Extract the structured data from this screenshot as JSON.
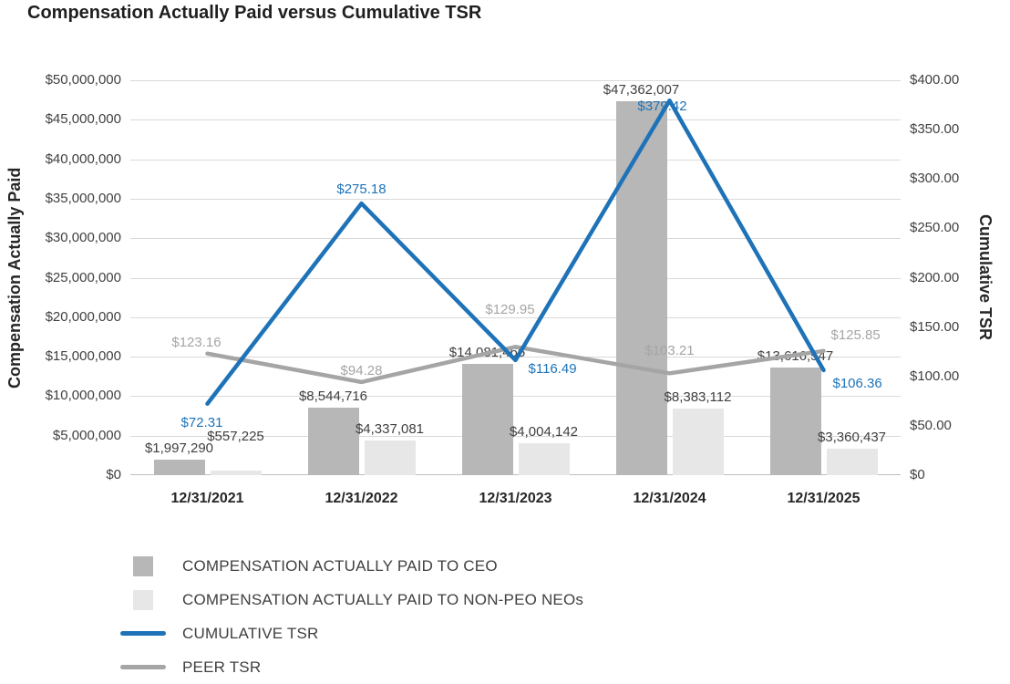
{
  "title": "Compensation Actually Paid versus Cumulative TSR",
  "chart_data": {
    "type": "combo-bar-line",
    "categories": [
      "12/31/2021",
      "12/31/2022",
      "12/31/2023",
      "12/31/2024",
      "12/31/2025"
    ],
    "left_axis": {
      "title": "Compensation Actually Paid",
      "min": 0,
      "max": 50000000,
      "step": 5000000,
      "tick_labels": [
        "$0",
        "$5,000,000",
        "$10,000,000",
        "$15,000,000",
        "$20,000,000",
        "$25,000,000",
        "$30,000,000",
        "$35,000,000",
        "$40,000,000",
        "$45,000,000",
        "$50,000,000"
      ]
    },
    "right_axis": {
      "title": "Cumulative TSR",
      "min": 0,
      "max": 400,
      "step": 50,
      "tick_labels": [
        "$0",
        "$50.00",
        "$100.00",
        "$150.00",
        "$200.00",
        "$250.00",
        "$300.00",
        "$350.00",
        "$400.00"
      ]
    },
    "bar_series": [
      {
        "name": "COMPENSATION ACTUALLY PAID TO CEO",
        "slug": "ceo",
        "color": "#b7b7b7",
        "values": [
          1997290,
          8544716,
          14081465,
          47362007,
          13616547
        ],
        "labels": [
          "$1,997,290",
          "$8,544,716",
          "$14,081,465",
          "$47,362,007",
          "$13,616,547"
        ]
      },
      {
        "name": "COMPENSATION ACTUALLY PAID TO NON-PEO NEOs",
        "slug": "non-peo-neos",
        "color": "#e7e7e7",
        "values": [
          557225,
          4337081,
          4004142,
          8383112,
          3360437
        ],
        "labels": [
          "$557,225",
          "$4,337,081",
          "$4,004,142",
          "$8,383,112",
          "$3,360,437"
        ]
      }
    ],
    "line_series": [
      {
        "name": "CUMULATIVE TSR",
        "slug": "cumulative-tsr",
        "color": "#1e73b8",
        "values": [
          72.31,
          275.18,
          116.49,
          379.42,
          106.36
        ],
        "labels": [
          "$72.31",
          "$275.18",
          "$116.49",
          "$379.42",
          "$106.36"
        ]
      },
      {
        "name": "PEER TSR",
        "slug": "peer-tsr",
        "color": "#a5a5a5",
        "values": [
          123.16,
          94.28,
          129.95,
          103.21,
          125.85
        ],
        "labels": [
          "$123.16",
          "$94.28",
          "$129.95",
          "$103.21",
          "$125.85"
        ]
      }
    ],
    "grid": true,
    "legend_position": "bottom-left"
  }
}
